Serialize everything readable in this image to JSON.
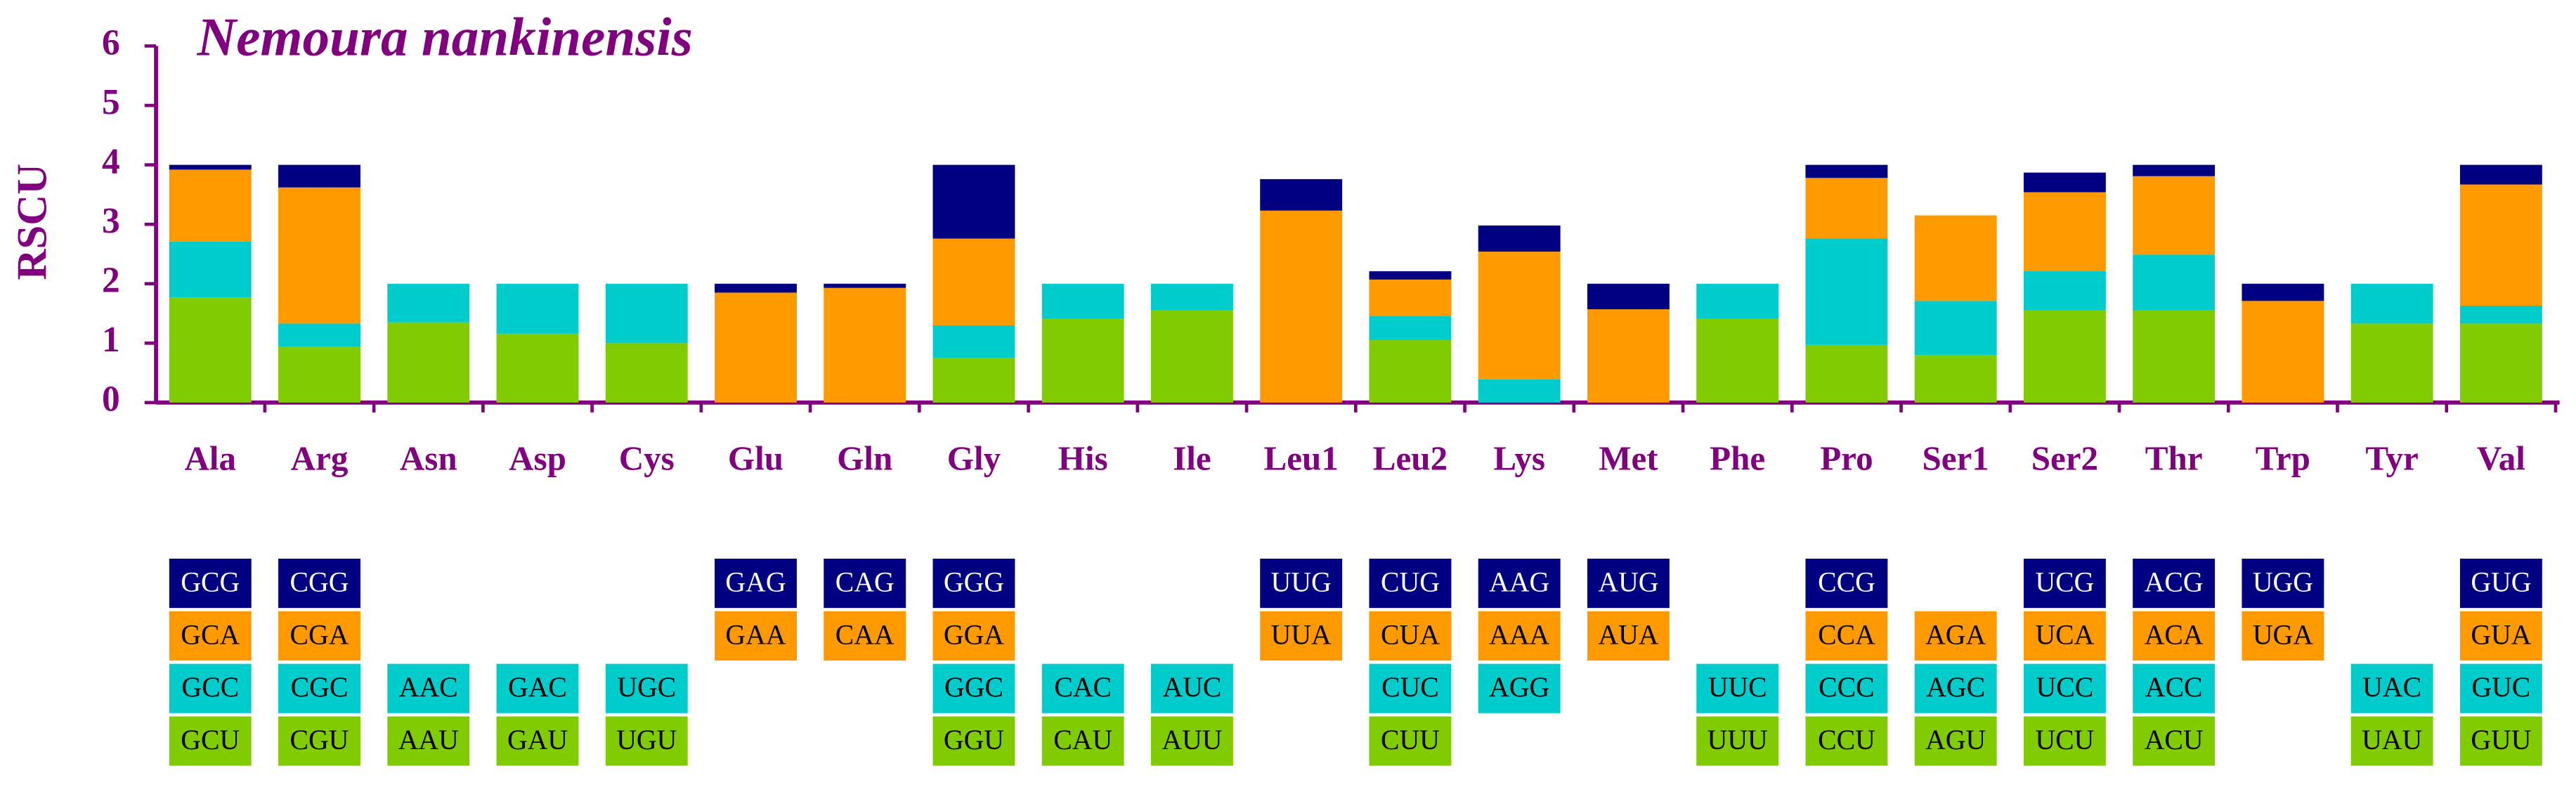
{
  "chart_data": {
    "type": "bar",
    "stacked": true,
    "title": "Nemoura nankinensis",
    "y_label": "RSCU",
    "categories": [
      "Ala",
      "Arg",
      "Asn",
      "Asp",
      "Cys",
      "Glu",
      "Gln",
      "Gly",
      "His",
      "Ile",
      "Leu1",
      "Leu2",
      "Lys",
      "Met",
      "Phe",
      "Pro",
      "Ser1",
      "Ser2",
      "Thr",
      "Trp",
      "Tyr",
      "Val"
    ],
    "ylim": [
      0,
      6
    ],
    "yticks": [
      0,
      1,
      2,
      3,
      4,
      5,
      6
    ],
    "axis_color": "#800080",
    "series": [
      {
        "color": "#80cc00",
        "values": [
          1.77,
          0.94,
          1.35,
          1.16,
          1.0,
          null,
          null,
          0.75,
          1.41,
          1.55,
          null,
          1.05,
          null,
          null,
          1.41,
          0.97,
          0.8,
          1.55,
          1.55,
          null,
          1.33,
          1.33
        ],
        "codons": [
          "GCU",
          "CGU",
          "AAU",
          "GAU",
          "UGU",
          null,
          null,
          "GGU",
          "CAU",
          "AUU",
          null,
          "CUU",
          null,
          null,
          "UUU",
          "CCU",
          "AGU",
          "UCU",
          "ACU",
          null,
          "UAU",
          "GUU"
        ]
      },
      {
        "color": "#00cccc",
        "values": [
          0.94,
          0.39,
          0.65,
          0.84,
          1.0,
          null,
          null,
          0.55,
          0.59,
          0.45,
          null,
          0.41,
          0.39,
          null,
          0.59,
          1.79,
          0.91,
          0.66,
          0.94,
          null,
          0.67,
          0.3
        ],
        "codons": [
          "GCC",
          "CGC",
          "AAC",
          "GAC",
          "UGC",
          null,
          null,
          "GGC",
          "CAC",
          "AUC",
          null,
          "CUC",
          "AGG",
          null,
          "UUC",
          "CCC",
          "AGC",
          "UCC",
          "ACC",
          null,
          "UAC",
          "GUC"
        ]
      },
      {
        "color": "#ff9900",
        "values": [
          1.21,
          2.29,
          null,
          null,
          null,
          1.85,
          1.93,
          1.46,
          null,
          null,
          3.23,
          0.61,
          2.15,
          1.57,
          null,
          1.02,
          1.44,
          1.33,
          1.32,
          1.71,
          null,
          2.04
        ],
        "codons": [
          "GCA",
          "CGA",
          null,
          null,
          null,
          "GAA",
          "CAA",
          "GGA",
          null,
          null,
          "UUA",
          "CUA",
          "AAA",
          "AUA",
          null,
          "CCA",
          "AGA",
          "UCA",
          "ACA",
          "UGA",
          null,
          "GUA"
        ]
      },
      {
        "color": "#000080",
        "values": [
          0.08,
          0.38,
          null,
          null,
          null,
          0.15,
          0.07,
          1.24,
          null,
          null,
          0.53,
          0.14,
          0.44,
          0.43,
          null,
          0.22,
          null,
          0.33,
          0.19,
          0.29,
          null,
          0.33
        ],
        "codons": [
          "GCG",
          "CGG",
          null,
          null,
          null,
          "GAG",
          "CAG",
          "GGG",
          null,
          null,
          "UUG",
          "CUG",
          "AAG",
          "AUG",
          null,
          "CCG",
          null,
          "UCG",
          "ACG",
          "UGG",
          null,
          "GUG"
        ]
      }
    ]
  }
}
